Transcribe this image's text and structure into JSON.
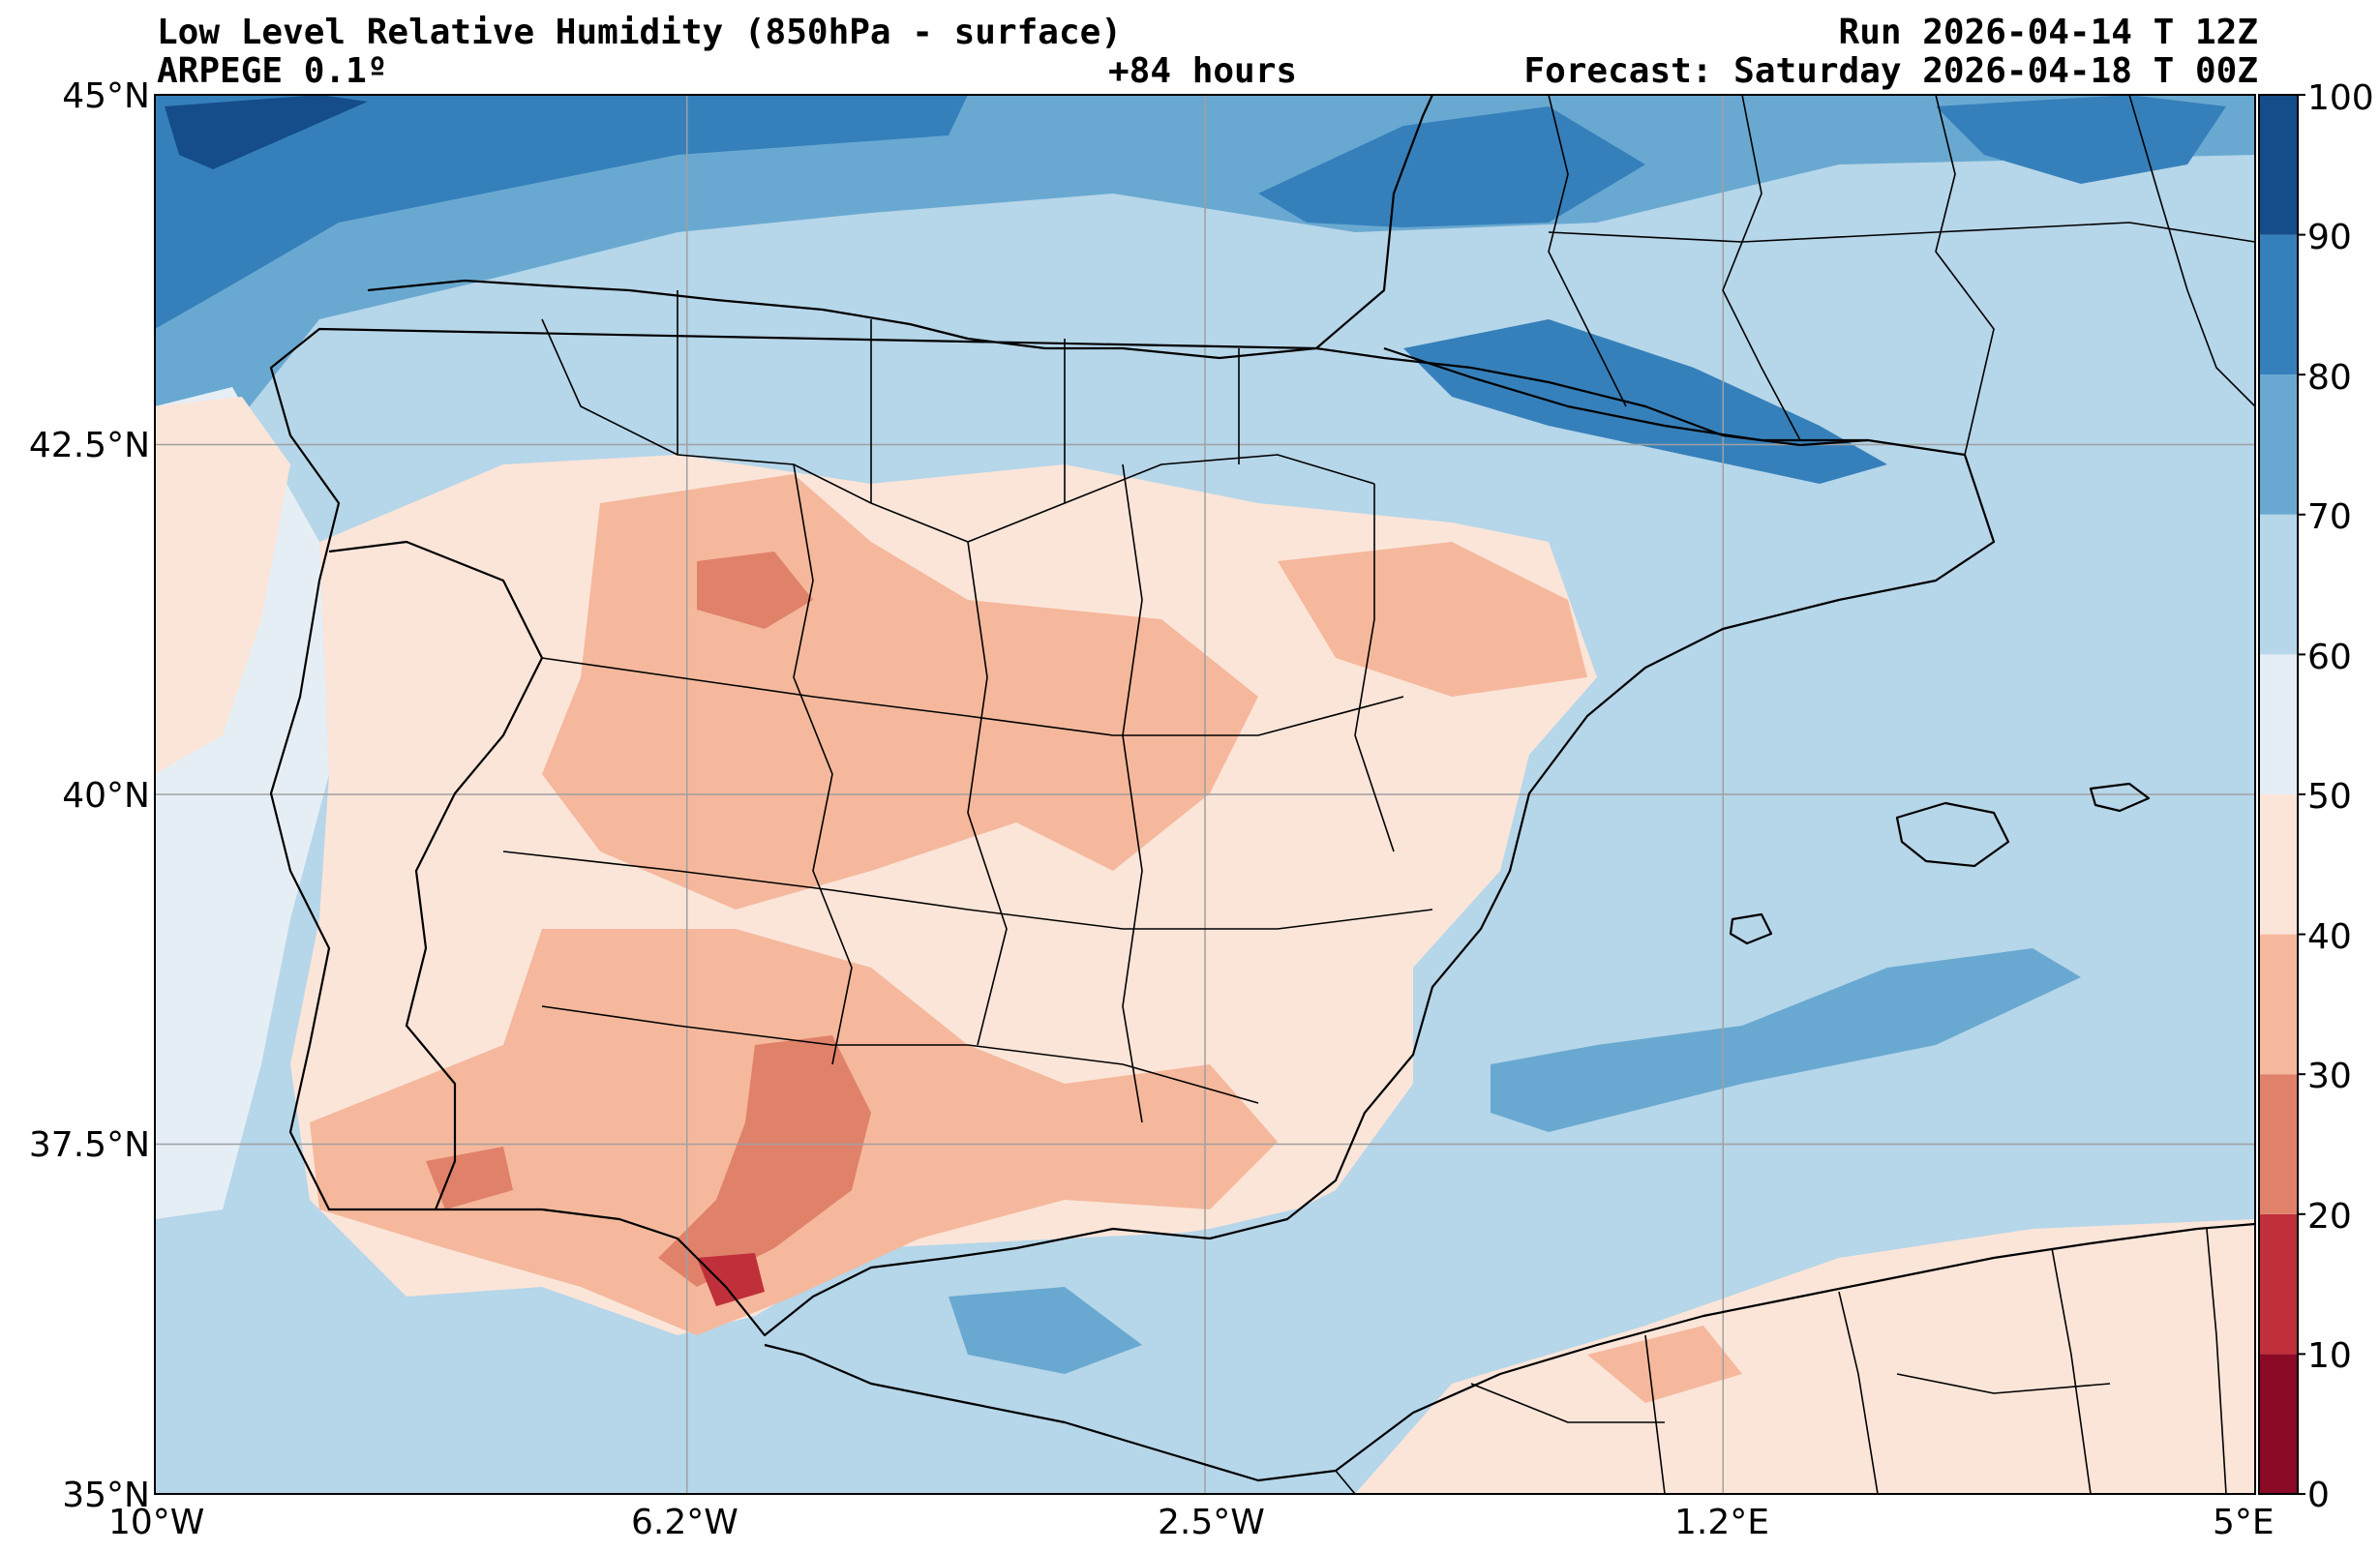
{
  "header": {
    "title": "Low Level Relative Humidity (850hPa - surface)",
    "run": "Run 2026-04-14 T 12Z",
    "model": "ARPEGE 0.1º",
    "lead": "+84 hours",
    "forecast": "Forecast: Saturday 2026-04-18 T 00Z"
  },
  "map": {
    "lon_range": [
      -10,
      5
    ],
    "lat_range": [
      35,
      45
    ],
    "lat_ticks": [
      {
        "value": 45,
        "label": "45°N"
      },
      {
        "value": 42.5,
        "label": "42.5°N"
      },
      {
        "value": 40,
        "label": "40°N"
      },
      {
        "value": 37.5,
        "label": "37.5°N"
      },
      {
        "value": 35,
        "label": "35°N"
      }
    ],
    "lon_ticks": [
      {
        "value": -10,
        "label": "10°W"
      },
      {
        "value": -6.2,
        "label": "6.2°W"
      },
      {
        "value": -2.5,
        "label": "2.5°W"
      },
      {
        "value": 1.2,
        "label": "1.2°E"
      },
      {
        "value": 5,
        "label": "5°E"
      }
    ],
    "grid": true,
    "variable": "Relative humidity (%)"
  },
  "colorbar": {
    "levels": [
      0,
      10,
      20,
      30,
      40,
      50,
      60,
      70,
      80,
      90,
      100
    ],
    "labels": [
      "0",
      "10",
      "20",
      "30",
      "40",
      "50",
      "60",
      "70",
      "80",
      "90",
      "100"
    ],
    "colors": [
      "#8b0a26",
      "#c0303a",
      "#e0816a",
      "#f5b89c",
      "#fbe5d9",
      "#e6eef5",
      "#b6d6e9",
      "#69a9d1",
      "#3580bb",
      "#144d8a"
    ]
  }
}
